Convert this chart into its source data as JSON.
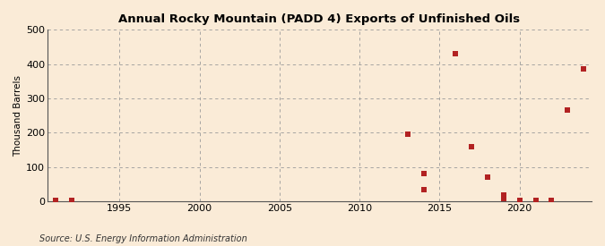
{
  "title": "Annual Rocky Mountain (PADD 4) Exports of Unfinished Oils",
  "ylabel": "Thousand Barrels",
  "source": "Source: U.S. Energy Information Administration",
  "background_color": "#faebd7",
  "plot_background_color": "#faebd7",
  "marker_color": "#b22222",
  "marker_size": 4,
  "xlim": [
    1990.5,
    2024.5
  ],
  "ylim": [
    0,
    500
  ],
  "yticks": [
    0,
    100,
    200,
    300,
    400,
    500
  ],
  "xticks": [
    1995,
    2000,
    2005,
    2010,
    2015,
    2020
  ],
  "data": [
    {
      "year": 1991,
      "value": 2
    },
    {
      "year": 1992,
      "value": 2
    },
    {
      "year": 2013,
      "value": 197
    },
    {
      "year": 2014,
      "value": 82
    },
    {
      "year": 2014,
      "value": 35
    },
    {
      "year": 2016,
      "value": 430
    },
    {
      "year": 2017,
      "value": 160
    },
    {
      "year": 2018,
      "value": 72
    },
    {
      "year": 2019,
      "value": 8
    },
    {
      "year": 2019,
      "value": 18
    },
    {
      "year": 2020,
      "value": 4
    },
    {
      "year": 2021,
      "value": 4
    },
    {
      "year": 2022,
      "value": 4
    },
    {
      "year": 2023,
      "value": 267
    },
    {
      "year": 2024,
      "value": 385
    }
  ]
}
